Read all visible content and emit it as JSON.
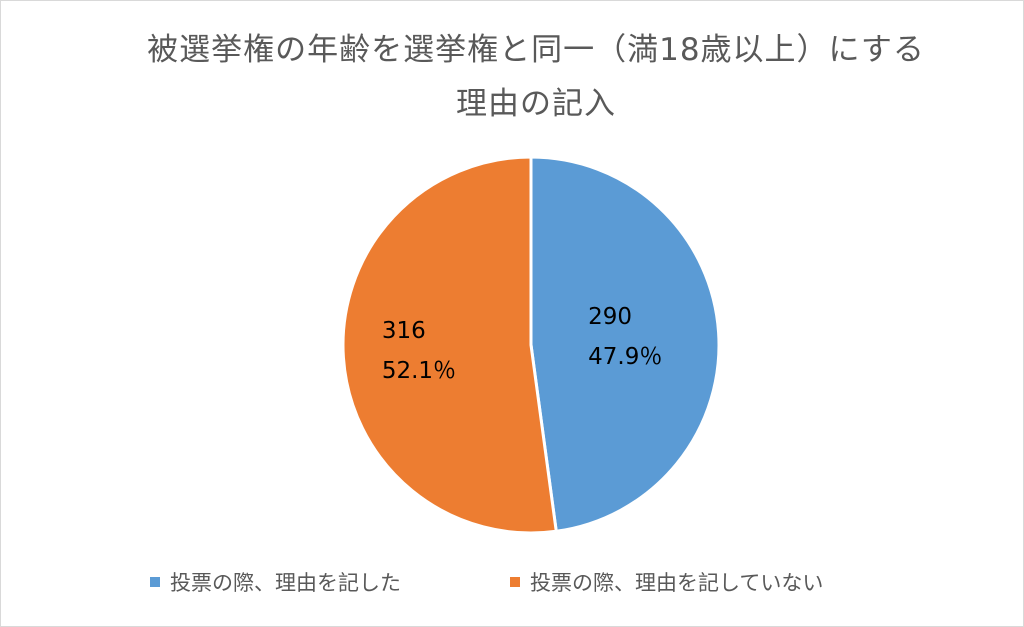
{
  "chart_data": {
    "type": "pie",
    "title_lines": [
      "被選挙権の年齢を選挙権と同一（満18歳以上）にする",
      "理由の記入"
    ],
    "slices": [
      {
        "name": "投票の際、理由を記した",
        "value": 290,
        "percent_label": "47.9％",
        "color": "#5b9bd5"
      },
      {
        "name": "投票の際、理由を記していない",
        "value": 316,
        "percent_label": "52.1％",
        "color": "#ed7d31"
      }
    ],
    "legend_position": "bottom"
  }
}
